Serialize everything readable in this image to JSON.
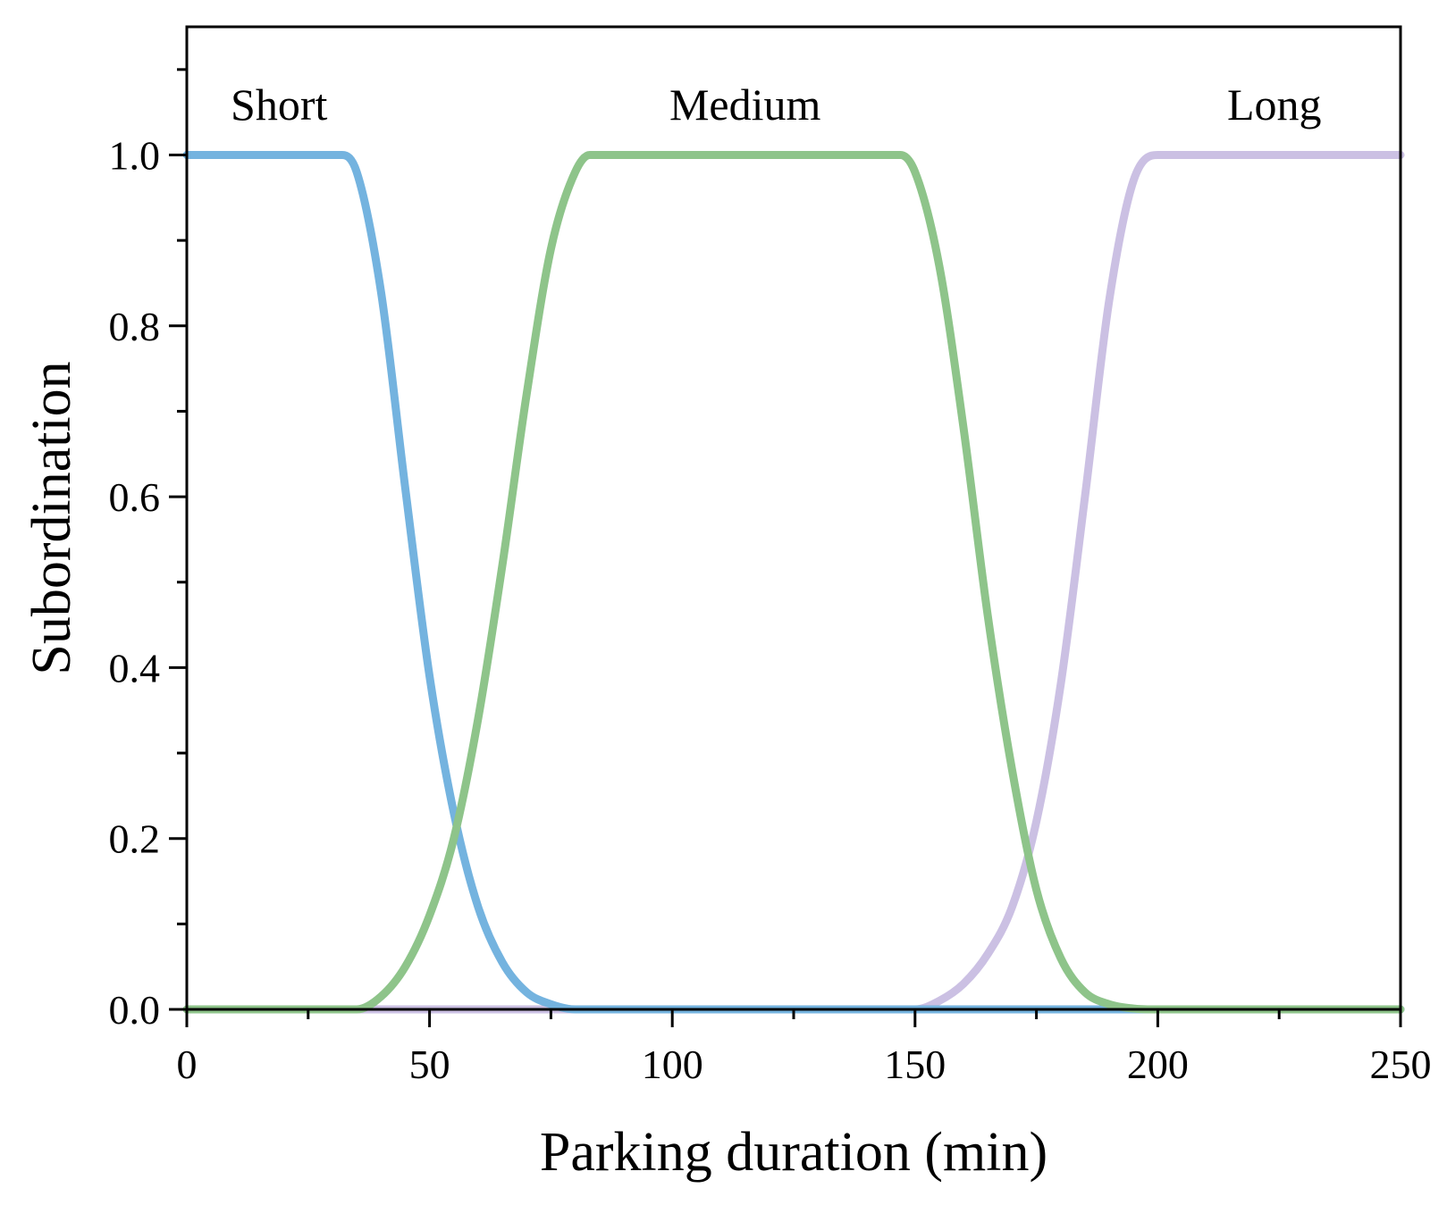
{
  "chart_data": {
    "type": "line",
    "xlabel": "Parking duration (min)",
    "ylabel": "Subordination",
    "xlim": [
      0,
      250
    ],
    "ylim": [
      0,
      1.15
    ],
    "x_ticks": [
      0,
      50,
      100,
      150,
      200,
      250
    ],
    "x_tick_labels": [
      "0",
      "50",
      "100",
      "150",
      "200",
      "250"
    ],
    "y_ticks": [
      0,
      0.2,
      0.4,
      0.6,
      0.8,
      1.0
    ],
    "y_tick_labels": [
      "0.0",
      "0.2",
      "0.4",
      "0.6",
      "0.8",
      "1.0"
    ],
    "grid": false,
    "legend": "none",
    "series": [
      {
        "name": "Short",
        "color": "#74b3df",
        "x": [
          0,
          32,
          35,
          40,
          45,
          50,
          55,
          60,
          65,
          70,
          75,
          80,
          250
        ],
        "y": [
          1.0,
          1.0,
          0.98,
          0.84,
          0.61,
          0.39,
          0.23,
          0.12,
          0.055,
          0.02,
          0.006,
          0.0,
          0.0
        ]
      },
      {
        "name": "Medium",
        "color": "#8ec48a",
        "x": [
          0,
          35,
          40,
          45,
          50,
          55,
          60,
          65,
          70,
          75,
          80,
          83,
          147,
          150,
          155,
          160,
          165,
          170,
          175,
          180,
          185,
          190,
          195,
          200,
          250
        ],
        "y": [
          0.0,
          0.0,
          0.015,
          0.05,
          0.11,
          0.2,
          0.34,
          0.52,
          0.72,
          0.89,
          0.98,
          1.0,
          1.0,
          0.98,
          0.87,
          0.68,
          0.46,
          0.28,
          0.14,
          0.06,
          0.02,
          0.006,
          0.001,
          0.0,
          0.0
        ]
      },
      {
        "name": "Long",
        "color": "#cbc0e3",
        "x": [
          0,
          150,
          155,
          160,
          165,
          170,
          175,
          180,
          185,
          190,
          195,
          200,
          250
        ],
        "y": [
          0.0,
          0.0,
          0.01,
          0.03,
          0.065,
          0.12,
          0.22,
          0.38,
          0.6,
          0.83,
          0.97,
          1.0,
          1.0
        ]
      }
    ]
  }
}
